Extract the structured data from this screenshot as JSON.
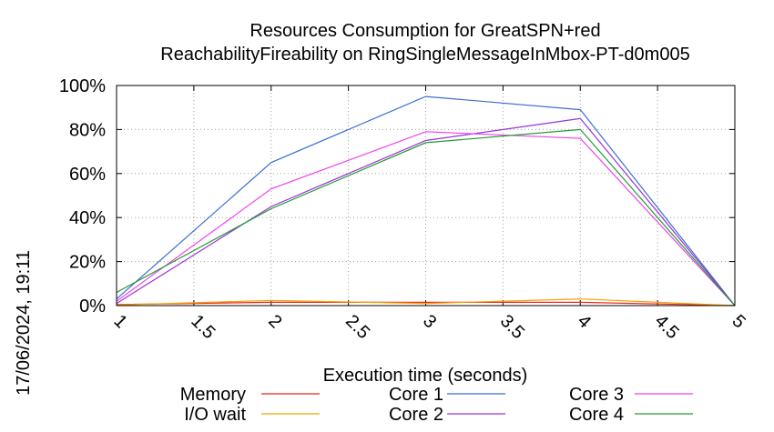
{
  "timestamp": "17/06/2024, 19:11",
  "chart_data": {
    "type": "line",
    "title_line1": "Resources Consumption for GreatSPN+red",
    "title_line2": "ReachabilityFireability on RingSingleMessageInMbox-PT-d0m005",
    "xlabel": "Execution time (seconds)",
    "ylabel": "",
    "xlim": [
      1,
      5
    ],
    "ylim": [
      0,
      100
    ],
    "x_ticks": [
      "1",
      "1.5",
      "2",
      "2.5",
      "3",
      "3.5",
      "4",
      "4.5",
      "5"
    ],
    "y_ticks": [
      "0%",
      "20%",
      "40%",
      "60%",
      "80%",
      "100%"
    ],
    "grid": true,
    "legend_position": "bottom",
    "x": [
      1,
      2,
      3,
      4,
      5
    ],
    "series": [
      {
        "name": "Memory",
        "color": "#e8261c",
        "values": [
          0.5,
          1.5,
          1.5,
          1.5,
          0
        ]
      },
      {
        "name": "I/O wait",
        "color": "#f5a000",
        "values": [
          0.3,
          2.3,
          1.0,
          3.0,
          0
        ]
      },
      {
        "name": "Core 1",
        "color": "#3b6fd1",
        "values": [
          3,
          65,
          95,
          89,
          0
        ]
      },
      {
        "name": "Core 2",
        "color": "#9b30d9",
        "values": [
          1,
          45,
          75,
          85,
          0
        ]
      },
      {
        "name": "Core 3",
        "color": "#f040f0",
        "values": [
          2,
          53,
          79,
          76,
          0
        ]
      },
      {
        "name": "Core 4",
        "color": "#209c30",
        "values": [
          6,
          44,
          74,
          80,
          0
        ]
      }
    ]
  }
}
